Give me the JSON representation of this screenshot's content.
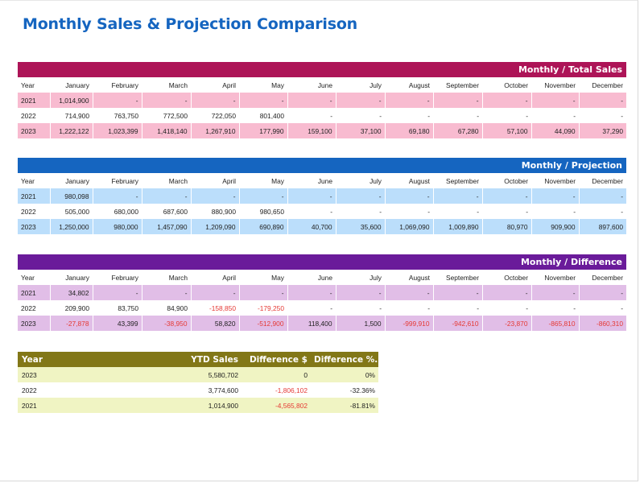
{
  "title": "Monthly Sales & Projection Comparison",
  "columns": [
    "Year",
    "January",
    "February",
    "March",
    "April",
    "May",
    "June",
    "July",
    "August",
    "September",
    "October",
    "November",
    "December"
  ],
  "sections": [
    {
      "label": "Monthly / Total Sales",
      "rows": [
        {
          "year": "2021",
          "values": [
            "1,014,900",
            "-",
            "-",
            "-",
            "-",
            "-",
            "-",
            "-",
            "-",
            "-",
            "-",
            "-"
          ]
        },
        {
          "year": "2022",
          "values": [
            "714,900",
            "763,750",
            "772,500",
            "722,050",
            "801,400",
            "-",
            "-",
            "-",
            "-",
            "-",
            "-",
            "-"
          ]
        },
        {
          "year": "2023",
          "values": [
            "1,222,122",
            "1,023,399",
            "1,418,140",
            "1,267,910",
            "177,990",
            "159,100",
            "37,100",
            "69,180",
            "67,280",
            "57,100",
            "44,090",
            "37,290"
          ]
        }
      ]
    },
    {
      "label": "Monthly / Projection",
      "rows": [
        {
          "year": "2021",
          "values": [
            "980,098",
            "-",
            "-",
            "-",
            "-",
            "-",
            "-",
            "-",
            "-",
            "-",
            "-",
            "-"
          ]
        },
        {
          "year": "2022",
          "values": [
            "505,000",
            "680,000",
            "687,600",
            "880,900",
            "980,650",
            "-",
            "-",
            "-",
            "-",
            "-",
            "-",
            "-"
          ]
        },
        {
          "year": "2023",
          "values": [
            "1,250,000",
            "980,000",
            "1,457,090",
            "1,209,090",
            "690,890",
            "40,700",
            "35,600",
            "1,069,090",
            "1,009,890",
            "80,970",
            "909,900",
            "897,600"
          ]
        }
      ]
    },
    {
      "label": "Monthly / Difference",
      "rows": [
        {
          "year": "2021",
          "values": [
            "34,802",
            "-",
            "-",
            "-",
            "-",
            "-",
            "-",
            "-",
            "-",
            "-",
            "-",
            "-"
          ]
        },
        {
          "year": "2022",
          "values": [
            "209,900",
            "83,750",
            "84,900",
            "-158,850",
            "-179,250",
            "-",
            "-",
            "-",
            "-",
            "-",
            "-",
            "-"
          ]
        },
        {
          "year": "2023",
          "values": [
            "-27,878",
            "43,399",
            "-38,950",
            "58,820",
            "-512,900",
            "118,400",
            "1,500",
            "-999,910",
            "-942,610",
            "-23,870",
            "-865,810",
            "-860,310"
          ]
        }
      ]
    }
  ],
  "ytd": {
    "headers": [
      "Year",
      "YTD Sales",
      "Difference $",
      "Difference %..."
    ],
    "rows": [
      {
        "year": "2023",
        "sales": "5,580,702",
        "diff": "0",
        "pct": "0%"
      },
      {
        "year": "2022",
        "sales": "3,774,600",
        "diff": "-1,806,102",
        "pct": "-32.36%"
      },
      {
        "year": "2021",
        "sales": "1,014,900",
        "diff": "-4,565,802",
        "pct": "-81.81%"
      }
    ]
  },
  "colors": {
    "title": "#1565c0",
    "total_band": "#ad1457",
    "total_shade": "#f8bbd0",
    "projection_band": "#1565c0",
    "projection_shade": "#bbdefb",
    "difference_band": "#6a1b9a",
    "difference_shade": "#e1bee7",
    "ytd_band": "#827717",
    "ytd_shade": "#f0f4c3",
    "negative": "#e53935"
  }
}
